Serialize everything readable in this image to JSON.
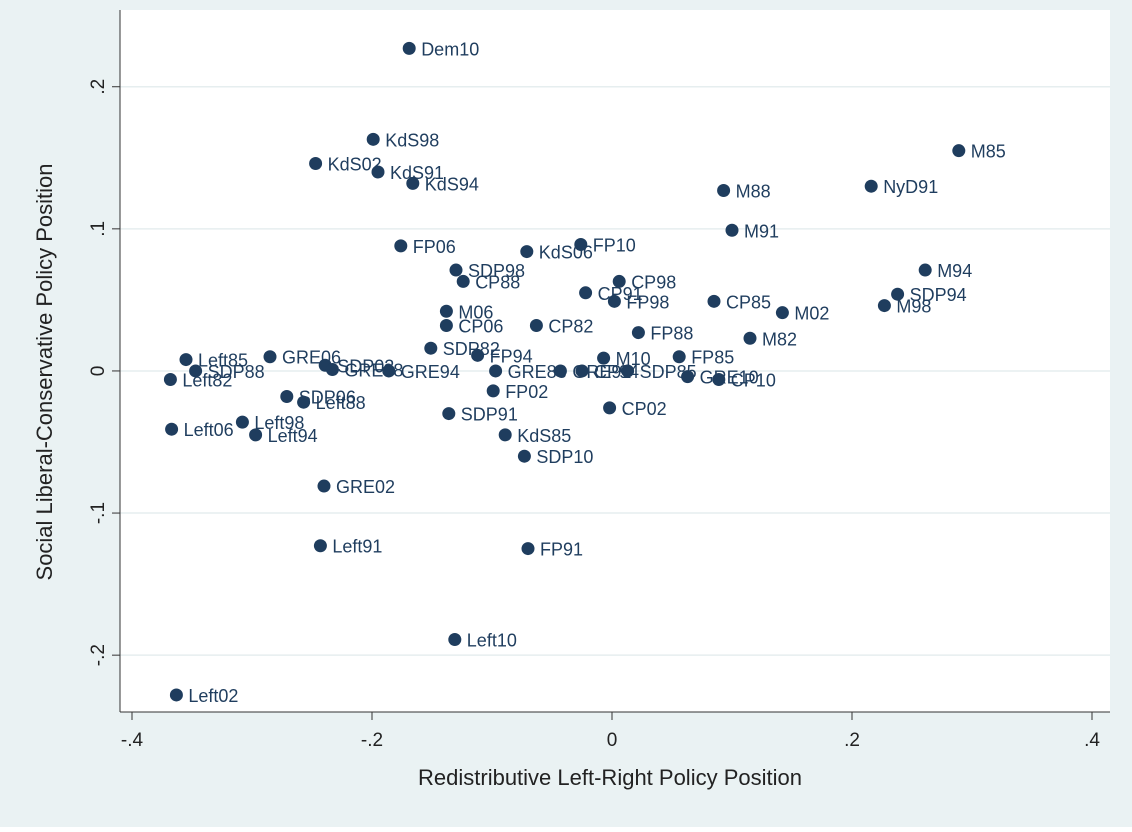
{
  "chart_data": {
    "type": "scatter",
    "x_label": "Redistributive Left-Right Policy Position",
    "y_label": "Social Liberal-Conservative Policy Position",
    "color": "#1f3d5e",
    "grid": true,
    "xlim": [
      -0.41,
      0.415
    ],
    "ylim": [
      -0.24,
      0.254
    ],
    "xticks": [
      {
        "value": -0.4,
        "label": "-.4"
      },
      {
        "value": -0.2,
        "label": "-.2"
      },
      0,
      {
        "value": 0.2,
        "label": ".2"
      },
      {
        "value": 0.4,
        "label": ".4"
      }
    ],
    "yticks": [
      {
        "value": -0.2,
        "label": "-.2"
      },
      {
        "value": -0.1,
        "label": "-.1"
      },
      0,
      {
        "value": 0.1,
        "label": ".1"
      },
      {
        "value": 0.2,
        "label": ".2"
      }
    ],
    "labels": [
      "Dem10",
      "KdS98",
      "KdS02",
      "KdS91",
      "KdS94",
      "M85",
      "NyD91",
      "M88",
      "M91",
      "FP06",
      "KdS06",
      "FP10",
      "SDP98",
      "CP88",
      "M94",
      "CP98",
      "CP91",
      "FP98",
      "CP85",
      "SDP94",
      "M98",
      "M02",
      "M06",
      "CP06",
      "CP82",
      "FP88",
      "M82",
      "SDP82",
      "FP94",
      "Left85",
      "GRE06",
      "SDP02",
      "GRE98",
      "GRE94",
      "Left82",
      "SDP88",
      "M10",
      "FP85",
      "GRE88",
      "GRE91",
      "CP94",
      "SDP85",
      "GRE10",
      "CP10",
      "FP02",
      "SDP06",
      "Left88",
      "CP02",
      "SDP91",
      "Left98",
      "Left06",
      "Left94",
      "KdS85",
      "SDP10",
      "GRE02",
      "Left91",
      "FP91",
      "Left10",
      "Left02"
    ],
    "x": [
      -0.169,
      -0.199,
      -0.247,
      -0.195,
      -0.166,
      0.289,
      0.216,
      0.093,
      0.1,
      -0.176,
      -0.071,
      -0.026,
      -0.13,
      -0.124,
      0.261,
      0.006,
      -0.022,
      0.002,
      0.085,
      0.238,
      0.227,
      0.142,
      -0.138,
      -0.138,
      -0.063,
      0.022,
      0.115,
      -0.151,
      -0.112,
      -0.355,
      -0.285,
      -0.239,
      -0.233,
      -0.186,
      -0.368,
      -0.347,
      -0.007,
      0.056,
      -0.097,
      -0.043,
      -0.025,
      0.013,
      0.063,
      0.089,
      -0.099,
      -0.271,
      -0.257,
      -0.002,
      -0.136,
      -0.308,
      -0.367,
      -0.297,
      -0.089,
      -0.073,
      -0.24,
      -0.243,
      -0.07,
      -0.131,
      -0.363
    ],
    "values": [
      0.227,
      0.163,
      0.146,
      0.14,
      0.132,
      0.155,
      0.13,
      0.127,
      0.099,
      0.088,
      0.084,
      0.089,
      0.071,
      0.063,
      0.071,
      0.063,
      0.055,
      0.049,
      0.049,
      0.054,
      0.046,
      0.041,
      0.042,
      0.032,
      0.032,
      0.027,
      0.023,
      0.016,
      0.011,
      0.008,
      0.01,
      0.004,
      0.001,
      0,
      -0.006,
      0,
      0.009,
      0.01,
      0,
      0,
      0,
      0,
      -0.004,
      -0.006,
      -0.014,
      -0.018,
      -0.022,
      -0.026,
      -0.03,
      -0.036,
      -0.041,
      -0.045,
      -0.045,
      -0.06,
      -0.081,
      -0.123,
      -0.125,
      -0.189,
      -0.228
    ]
  }
}
